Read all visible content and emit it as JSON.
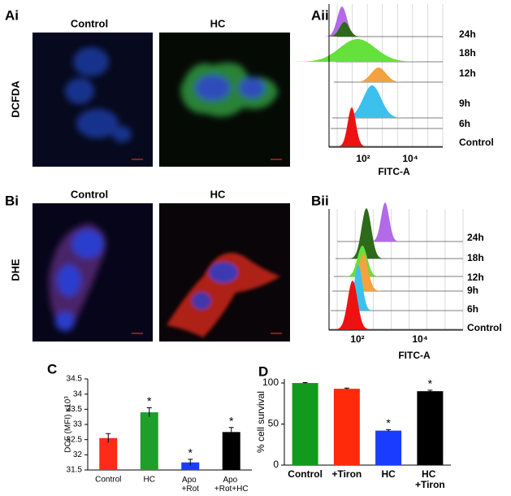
{
  "panels": {
    "A": {
      "image_label": "Ai",
      "columns": [
        "Control",
        "HC"
      ],
      "stain": "DCFDA",
      "flow_label": "Aii",
      "flow_series": [
        "24h",
        "18h",
        "12h",
        "9h",
        "6h",
        "Control"
      ],
      "flow_ticks": [
        "10²",
        "10⁴"
      ],
      "flow_xlabel": "FITC-A"
    },
    "B": {
      "image_label": "Bi",
      "columns": [
        "Control",
        "HC"
      ],
      "stain": "DHE",
      "flow_label": "Bii",
      "flow_series": [
        "24h",
        "18h",
        "12h",
        "9h",
        "6h",
        "Control"
      ],
      "flow_ticks": [
        "10²",
        "10⁴"
      ],
      "flow_xlabel": "FITC-A"
    }
  },
  "chart_data": [
    {
      "type": "bar",
      "panel_label": "C",
      "ylabel": "DCF (MFI) x10³",
      "categories": [
        "Control",
        "HC",
        "Apo +Rot",
        "Apo +Rot+HC"
      ],
      "values": [
        32.55,
        33.4,
        31.75,
        32.75
      ],
      "errors": [
        0.15,
        0.15,
        0.1,
        0.15
      ],
      "colors": [
        "#ff2a1a",
        "#1f9e2c",
        "#1a3cff",
        "#000000"
      ],
      "markers": [
        null,
        "*",
        "*",
        "*"
      ],
      "ylim": [
        31.5,
        34.5
      ],
      "yticks": [
        31.5,
        32,
        32.5,
        33,
        33.5,
        34,
        34.5
      ]
    },
    {
      "type": "bar",
      "panel_label": "D",
      "ylabel": "% cell survival",
      "categories": [
        "Control",
        "+Tiron",
        "HC",
        "HC +Tiron"
      ],
      "values": [
        100,
        93,
        42,
        90
      ],
      "errors": [
        0.5,
        0.8,
        1.2,
        1.2
      ],
      "colors": [
        "#129a1c",
        "#ff2a0a",
        "#1a3cff",
        "#000000"
      ],
      "markers": [
        null,
        null,
        "*",
        "*"
      ],
      "ylim": [
        0,
        105
      ],
      "yticks": [
        0,
        50,
        100
      ]
    }
  ]
}
